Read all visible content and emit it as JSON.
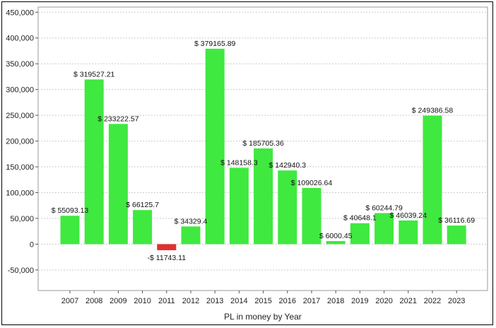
{
  "chart_data": {
    "type": "bar",
    "title": "",
    "xlabel": "PL in money by Year",
    "ylabel": "",
    "categories": [
      "2007",
      "2008",
      "2009",
      "2010",
      "2011",
      "2012",
      "2013",
      "2014",
      "2015",
      "2016",
      "2017",
      "2018",
      "2019",
      "2020",
      "2021",
      "2022",
      "2023"
    ],
    "values": [
      55093.13,
      319527.21,
      233222.57,
      66125.7,
      -11743.11,
      34329.4,
      379165.89,
      148158.3,
      185705.36,
      142940.3,
      109026.64,
      6000.45,
      40648.1,
      60244.79,
      46039.24,
      249386.58,
      36116.69
    ],
    "value_labels": [
      "$ 55093.13",
      "$ 319527.21",
      "$ 233222.57",
      "$ 66125.7",
      "-$ 11743.11",
      "$ 34329.4",
      "$ 379165.89",
      "$ 148158.3",
      "$ 185705.36",
      "$ 142940.3",
      "$ 109026.64",
      "$ 6000.45",
      "$ 40648.1",
      "$ 60244.79",
      "$ 46039.24",
      "$ 249386.58",
      "$ 36116.69"
    ],
    "yticks": [
      -50000,
      0,
      50000,
      100000,
      150000,
      200000,
      250000,
      300000,
      350000,
      400000,
      450000
    ],
    "ytick_labels": [
      "-50,000",
      "0",
      "50,000",
      "100,000",
      "150,000",
      "200,000",
      "250,000",
      "300,000",
      "350,000",
      "400,000",
      "450,000"
    ],
    "ylim": [
      -90000,
      460000
    ],
    "grid": true,
    "colors": {
      "positive": "#3fe93f",
      "negative": "#e03030",
      "grid": "#cccccc",
      "axis": "#555555"
    }
  }
}
